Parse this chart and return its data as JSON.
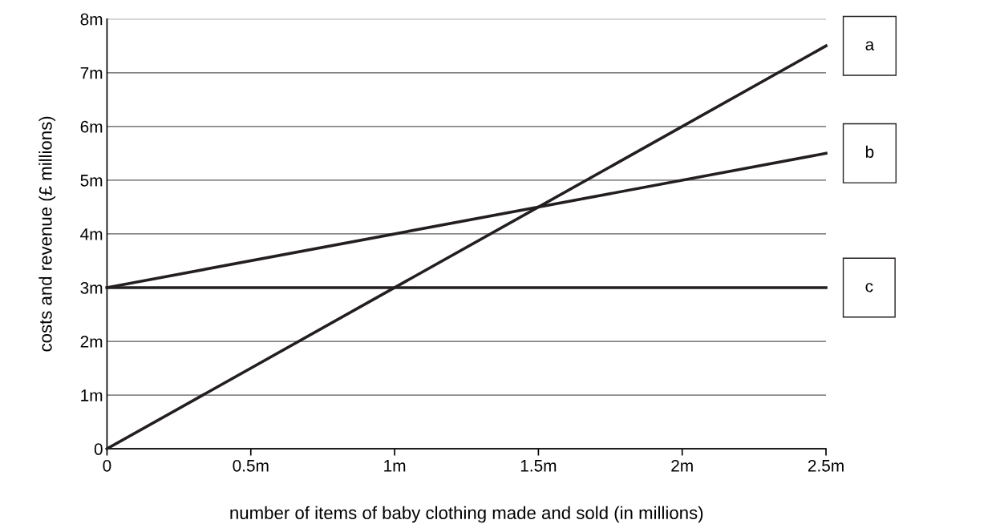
{
  "chart_data": {
    "type": "line",
    "xlabel": "number of items of baby clothing made and sold (in millions)",
    "ylabel": "costs and revenue (£ millions)",
    "x": [
      0,
      2.5
    ],
    "series": [
      {
        "name": "a",
        "color": "#231f20",
        "values": [
          0,
          7.5
        ]
      },
      {
        "name": "b",
        "color": "#231f20",
        "values": [
          3,
          5.5
        ]
      },
      {
        "name": "c",
        "color": "#231f20",
        "values": [
          3,
          3
        ]
      }
    ],
    "xlim": [
      0,
      2.5
    ],
    "ylim": [
      0,
      8
    ],
    "xticks": [
      0,
      {
        "value": 0.5,
        "label": "0.5m"
      },
      {
        "value": 1,
        "label": "1m"
      },
      {
        "value": 1.5,
        "label": "1.5m"
      },
      {
        "value": 2,
        "label": "2m"
      },
      {
        "value": 2.5,
        "label": "2.5m"
      }
    ],
    "yticks": [
      0,
      {
        "value": 1,
        "label": "1m"
      },
      {
        "value": 2,
        "label": "2m"
      },
      {
        "value": 3,
        "label": "3m"
      },
      {
        "value": 4,
        "label": "4m"
      },
      {
        "value": 5,
        "label": "5m"
      },
      {
        "value": 6,
        "label": "6m"
      },
      {
        "value": 7,
        "label": "7m"
      },
      {
        "value": 8,
        "label": "8m"
      }
    ],
    "grid": "y",
    "legend": false,
    "marker": "none",
    "line_style": "solid"
  }
}
